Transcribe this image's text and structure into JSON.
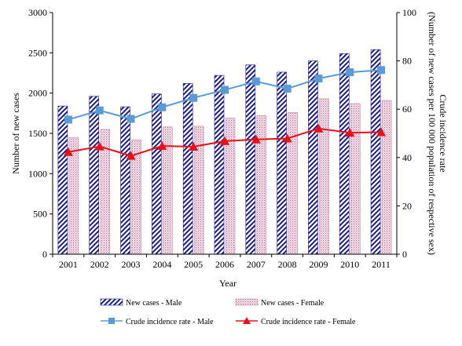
{
  "chart_data": {
    "type": "bar",
    "categories": [
      "2001",
      "2002",
      "2003",
      "2004",
      "2005",
      "2006",
      "2007",
      "2008",
      "2009",
      "2010",
      "2011"
    ],
    "xlabel": "Year",
    "ylabel": "Number of new cases",
    "y2label_line1": "Crude incidence  rate",
    "y2label_line2": "(Number of new cases per 100 000 population of respective  sex)",
    "ylim": [
      0,
      3000
    ],
    "y2lim": [
      0,
      100
    ],
    "yticks": [
      "0",
      "500",
      "1000",
      "1500",
      "2000",
      "2500",
      "3000"
    ],
    "y2ticks": [
      "0",
      "20",
      "40",
      "60",
      "80",
      "100"
    ],
    "grid": false,
    "legend_position": "bottom",
    "series": [
      {
        "name": "New cases - Male",
        "kind": "bar",
        "axis": "left",
        "pattern": "diagonal-hatch",
        "color": "#1a1a8c",
        "values": [
          1840,
          1960,
          1830,
          1990,
          2120,
          2220,
          2350,
          2260,
          2400,
          2490,
          2540
        ]
      },
      {
        "name": "New cases - Female",
        "kind": "bar",
        "axis": "left",
        "pattern": "dotted",
        "color": "#c98aa8",
        "values": [
          1450,
          1550,
          1420,
          1580,
          1590,
          1690,
          1720,
          1760,
          1930,
          1870,
          1910
        ]
      },
      {
        "name": "Crude incidence rate - Male",
        "kind": "line",
        "axis": "right",
        "marker": "square",
        "color": "#5b9bd5",
        "values": [
          55.7,
          59.5,
          56.0,
          60.8,
          64.7,
          68.0,
          71.5,
          68.5,
          72.7,
          75.3,
          76.2
        ]
      },
      {
        "name": "Crude incidence rate  - Female",
        "kind": "line",
        "axis": "right",
        "marker": "triangle",
        "color": "#e8101a",
        "values": [
          42.3,
          44.6,
          40.7,
          44.8,
          44.5,
          46.8,
          47.5,
          47.9,
          52.0,
          50.3,
          50.5
        ]
      }
    ]
  }
}
